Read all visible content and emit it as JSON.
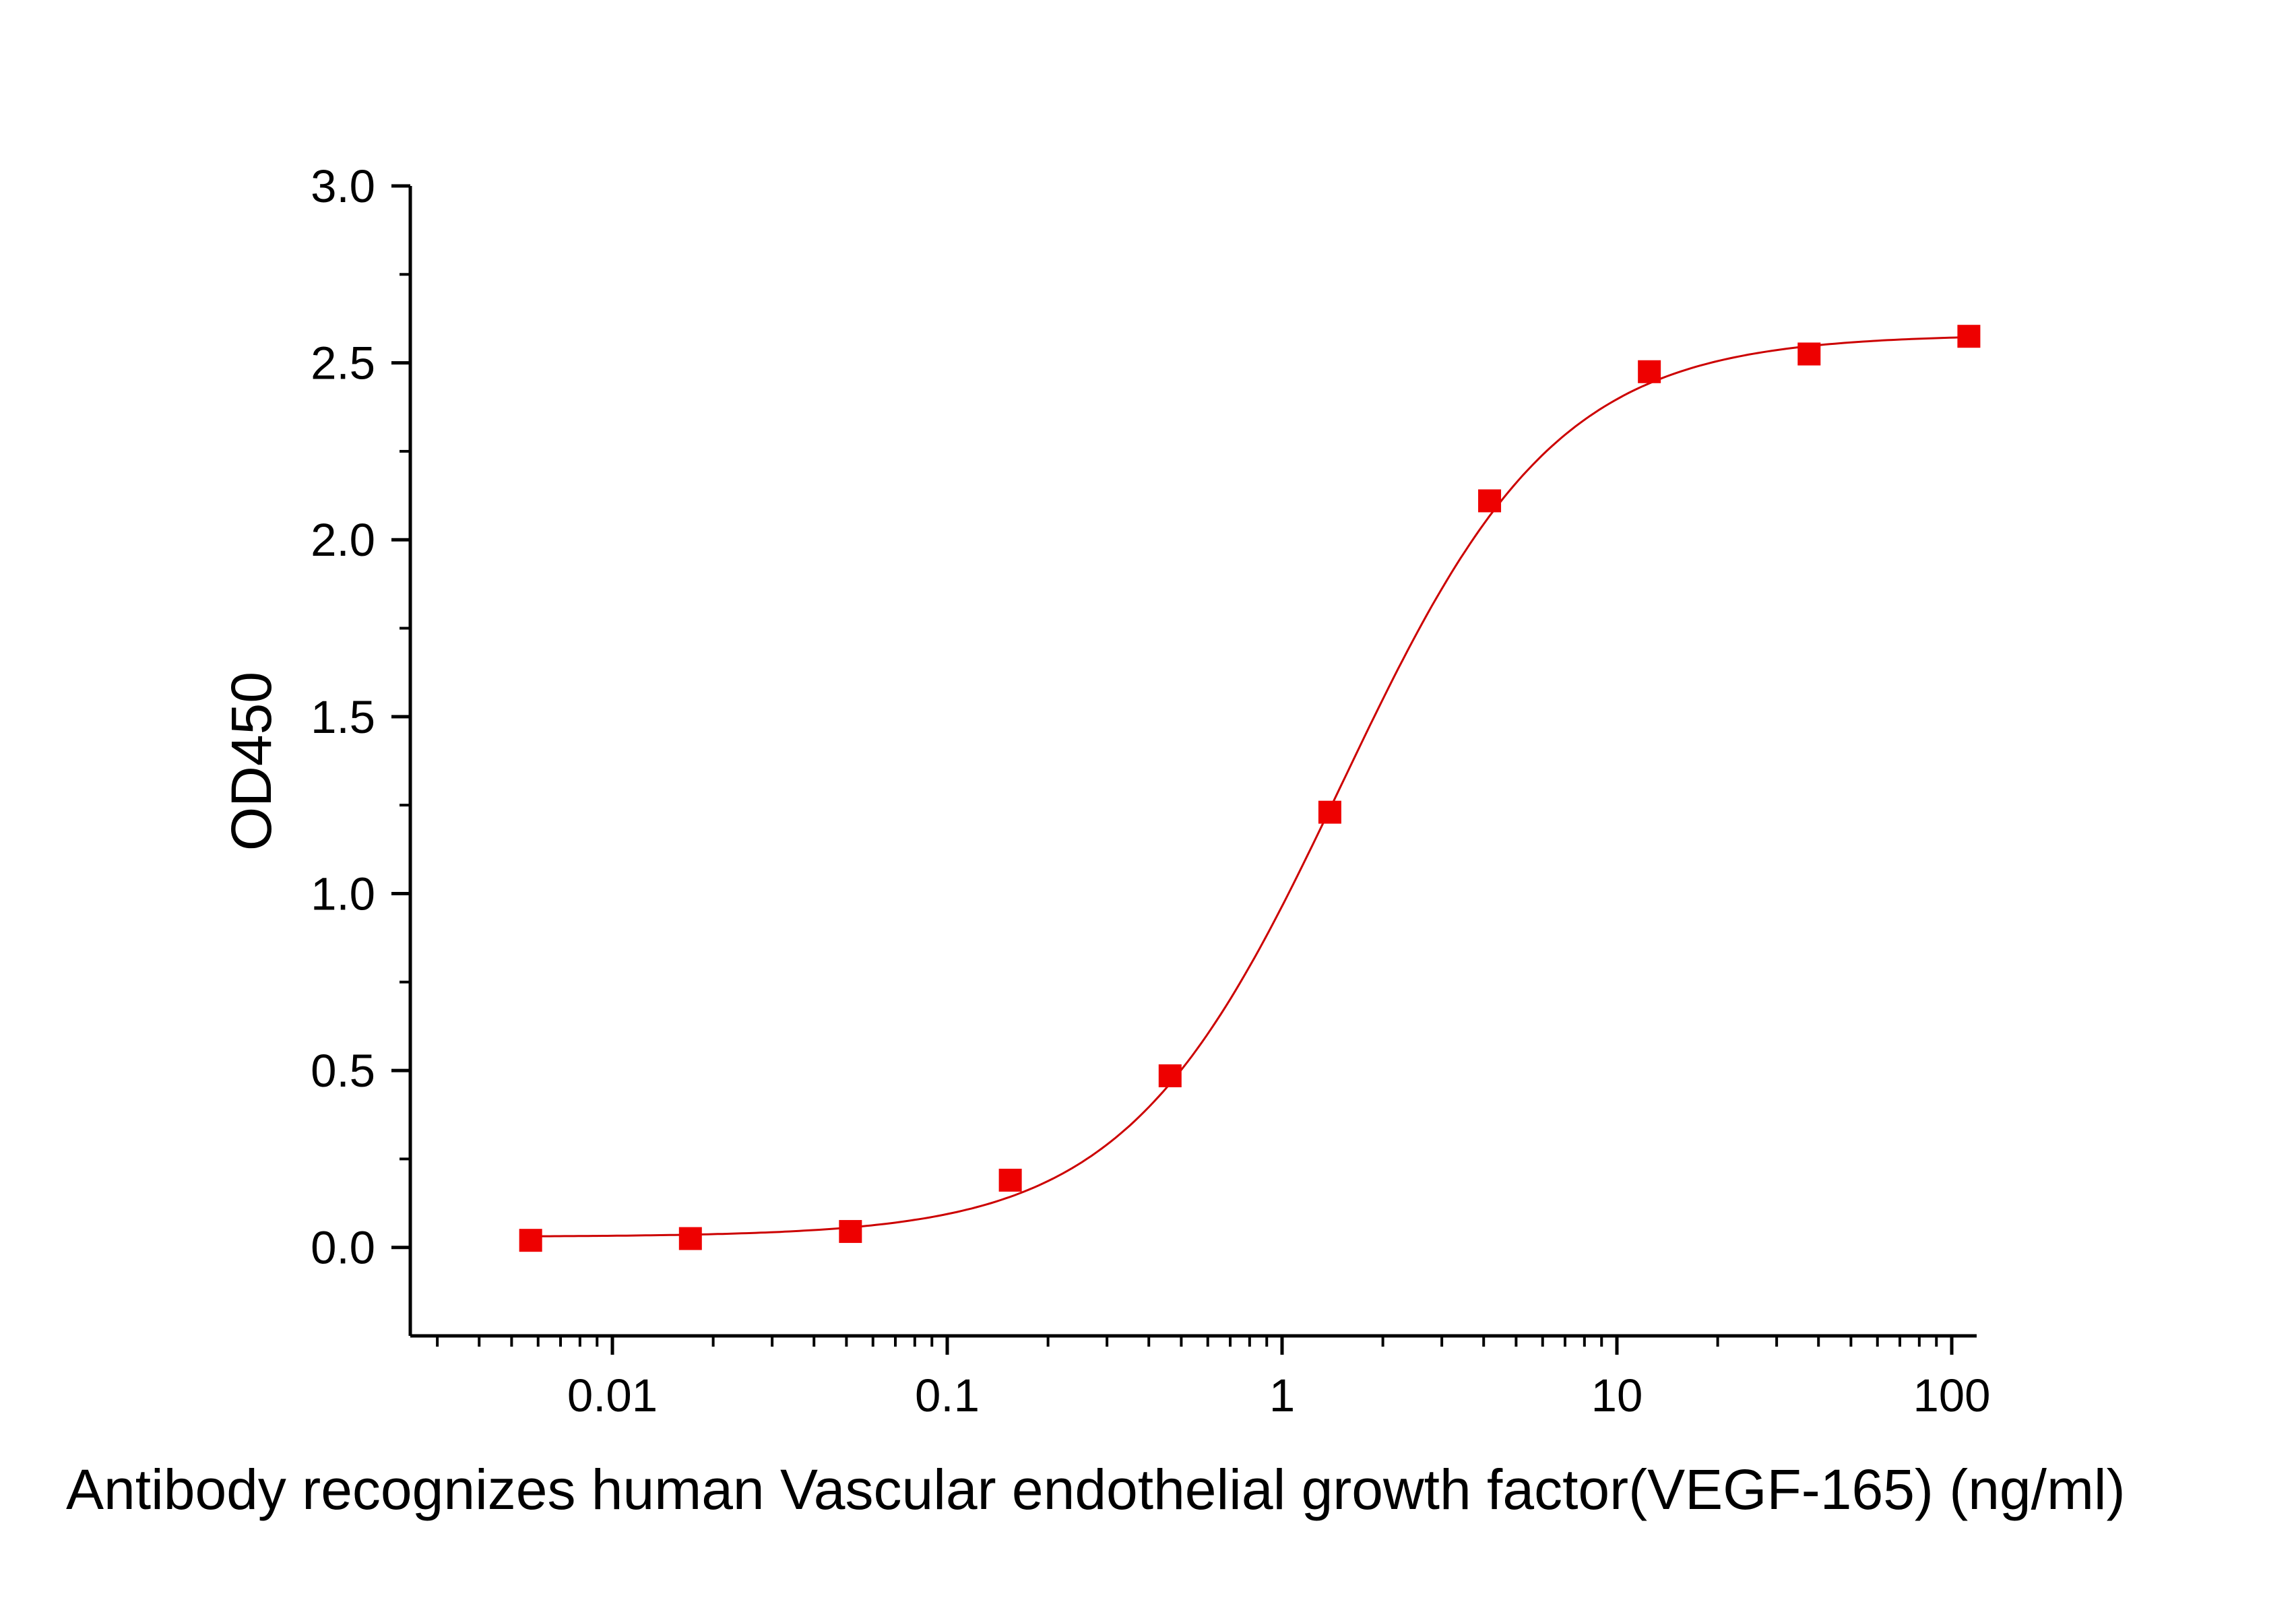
{
  "chart_data": {
    "type": "scatter",
    "title": "",
    "xlabel": "Antibody recognizes human Vascular endothelial growth factor(VEGF-165) (ng/ml)",
    "ylabel": "OD450",
    "x_scale": "log",
    "xlim": [
      0.003,
      110
    ],
    "ylim": [
      -0.25,
      3.0
    ],
    "x_ticks": [
      0.01,
      0.1,
      1,
      10,
      100
    ],
    "x_tick_labels": [
      "0.01",
      "0.1",
      "1",
      "10",
      "100"
    ],
    "y_ticks": [
      0.0,
      0.5,
      1.0,
      1.5,
      2.0,
      2.5,
      3.0
    ],
    "y_tick_labels": [
      "0.0",
      "0.5",
      "1.0",
      "1.5",
      "2.0",
      "2.5",
      "3.0"
    ],
    "grid": false,
    "legend": "none",
    "series": [
      {
        "marker": "square",
        "color": "#ee0000",
        "x": [
          0.0057,
          0.0171,
          0.0514,
          0.1543,
          0.463,
          1.389,
          4.167,
          12.5,
          37.5,
          112.5
        ],
        "y": [
          0.02,
          0.025,
          0.045,
          0.19,
          0.485,
          1.23,
          2.11,
          2.475,
          2.525,
          2.575
        ]
      }
    ],
    "fit": {
      "model": "4PL",
      "color": "#cc0000",
      "bottom": 0.03,
      "top": 2.58,
      "ec50": 1.5,
      "hill": 1.35
    }
  }
}
